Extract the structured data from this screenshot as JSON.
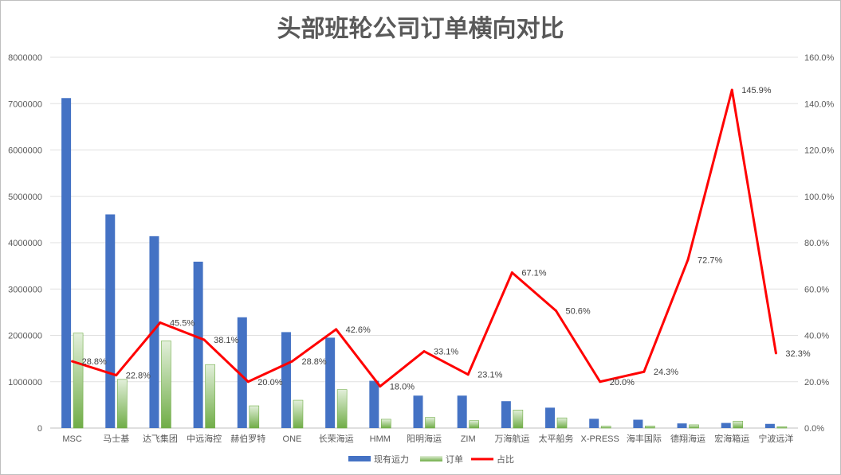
{
  "chart_data": {
    "type": "bar",
    "title": "头部班轮公司订单横向对比",
    "categories": [
      "MSC",
      "马士基",
      "达飞集团",
      "中远海控",
      "赫伯罗特",
      "ONE",
      "长荣海运",
      "HMM",
      "阳明海运",
      "ZIM",
      "万海航运",
      "太平船务",
      "X-PRESS",
      "海丰国际",
      "德翔海运",
      "宏海箱运",
      "宁波远洋"
    ],
    "series": [
      {
        "name": "现有运力",
        "kind": "bar",
        "axis": "left",
        "color": "#4472c4",
        "values": [
          7120000,
          4610000,
          4140000,
          3590000,
          2390000,
          2070000,
          1950000,
          1020000,
          700000,
          700000,
          580000,
          440000,
          200000,
          180000,
          100000,
          110000,
          90000
        ]
      },
      {
        "name": "订单",
        "kind": "bar",
        "axis": "left",
        "color": "#70ad47",
        "values": [
          2050000,
          1050000,
          1880000,
          1370000,
          480000,
          600000,
          830000,
          190000,
          230000,
          160000,
          390000,
          220000,
          40000,
          45000,
          70000,
          150000,
          30000
        ]
      },
      {
        "name": "占比",
        "kind": "line",
        "axis": "right",
        "color": "#ff0000",
        "values": [
          28.8,
          22.8,
          45.5,
          38.1,
          20.0,
          28.8,
          42.6,
          18.0,
          33.1,
          23.1,
          67.1,
          50.6,
          20.0,
          24.3,
          72.7,
          145.9,
          32.3
        ],
        "labels": [
          "28.8%",
          "22.8%",
          "45.5%",
          "38.1%",
          "20.0%",
          "28.8%",
          "42.6%",
          "18.0%",
          "33.1%",
          "23.1%",
          "67.1%",
          "50.6%",
          "20.0%",
          "24.3%",
          "72.7%",
          "145.9%",
          "32.3%"
        ]
      }
    ],
    "y_left": {
      "min": 0,
      "max": 8000000,
      "step": 1000000,
      "ticks": [
        "0",
        "1000000",
        "2000000",
        "3000000",
        "4000000",
        "5000000",
        "6000000",
        "7000000",
        "8000000"
      ]
    },
    "y_right": {
      "min": 0,
      "max": 160,
      "step": 20,
      "ticks": [
        "0.0%",
        "20.0%",
        "40.0%",
        "60.0%",
        "80.0%",
        "100.0%",
        "120.0%",
        "140.0%",
        "160.0%"
      ]
    },
    "grid": true,
    "legend_position": "bottom"
  }
}
